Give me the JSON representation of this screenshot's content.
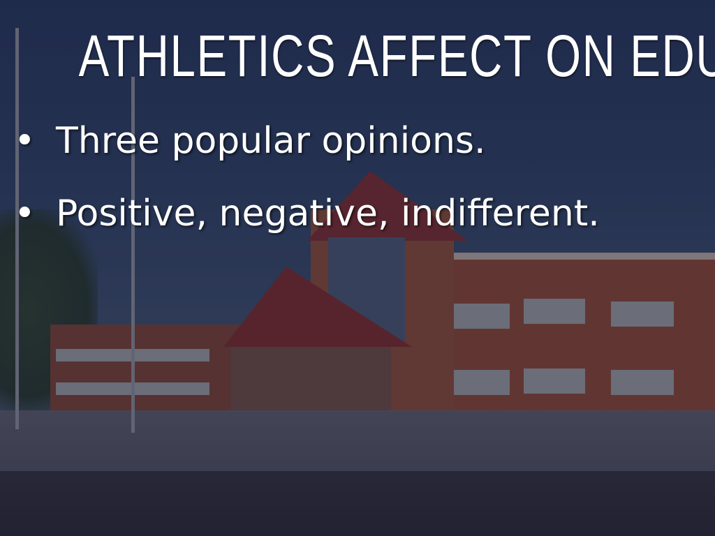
{
  "slide": {
    "title": "ATHLETICS AFFECT ON EDU.",
    "bullets": [
      {
        "icon": "bullet-dot",
        "text": "Three popular opinions."
      },
      {
        "icon": "bullet-dot",
        "text": "Positive, negative, indifferent."
      }
    ],
    "bullet_glyph": "•",
    "colors": {
      "text": "#ffffff",
      "sky": "#26355a",
      "brick": "#8a4634"
    }
  }
}
